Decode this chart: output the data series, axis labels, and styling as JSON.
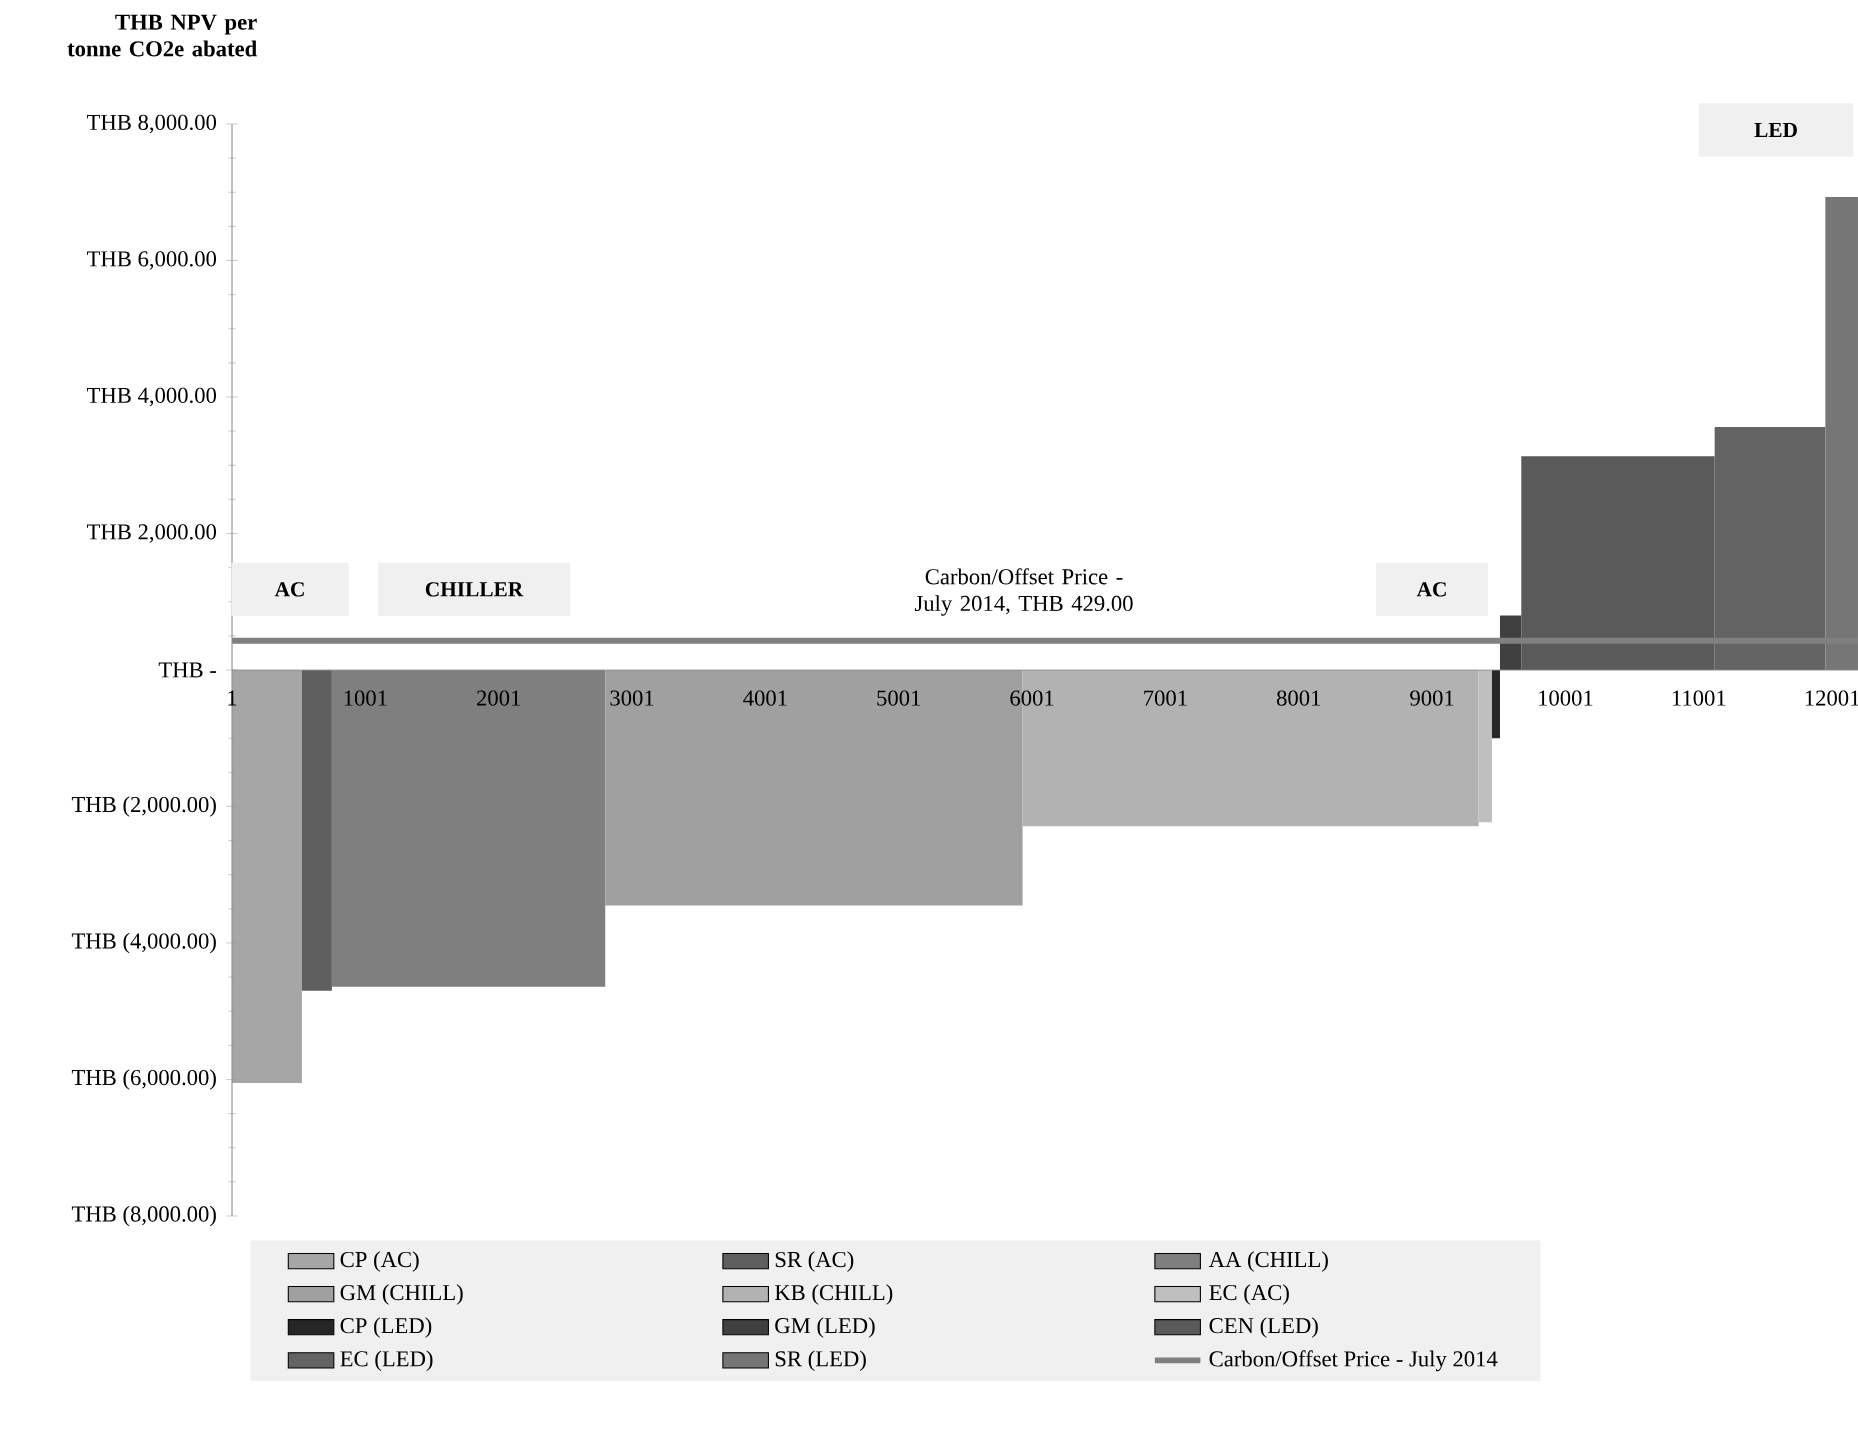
{
  "chart_data": {
    "type": "area",
    "ylabel": "THB NPV per tonne CO2e abated",
    "xlim": [
      1,
      12200
    ],
    "xticks": [
      1,
      1001,
      2001,
      3001,
      4001,
      5001,
      6001,
      7001,
      8001,
      9001,
      10001,
      11001,
      12001
    ],
    "ylim": [
      -8000,
      8000
    ],
    "yticks": [
      {
        "value": 8000,
        "label": "THB 8,000.00"
      },
      {
        "value": 6000,
        "label": "THB 6,000.00"
      },
      {
        "value": 4000,
        "label": "THB 4,000.00"
      },
      {
        "value": 2000,
        "label": "THB 2,000.00"
      },
      {
        "value": 0,
        "label": "THB -"
      },
      {
        "value": -2000,
        "label": "THB (2,000.00)"
      },
      {
        "value": -4000,
        "label": "THB (4,000.00)"
      },
      {
        "value": -6000,
        "label": "THB (6,000.00)"
      },
      {
        "value": -8000,
        "label": "THB (8,000.00)"
      }
    ],
    "series": [
      {
        "name": "CP (AC)",
        "color": "#a6a6a6",
        "x": [
          1,
          525
        ],
        "values": [
          -6050,
          -6050
        ]
      },
      {
        "name": "SR (AC)",
        "color": "#5f5f5f",
        "x": [
          525,
          750
        ],
        "values": [
          -4700,
          -4700
        ]
      },
      {
        "name": "AA (CHILL)",
        "color": "#7f7f7f",
        "x": [
          750,
          2800
        ],
        "values": [
          -4640,
          -4640
        ]
      },
      {
        "name": "GM (CHILL)",
        "color": "#a0a0a0",
        "x": [
          2800,
          5930
        ],
        "values": [
          -3450,
          -3450
        ]
      },
      {
        "name": "KB (CHILL)",
        "color": "#b2b2b2",
        "x": [
          5930,
          9350
        ],
        "values": [
          -2290,
          -2290
        ]
      },
      {
        "name": "EC (AC)",
        "color": "#bfbfbf",
        "x": [
          9350,
          9450
        ],
        "values": [
          -2230,
          -2230
        ]
      },
      {
        "name": "CP (LED)",
        "color": "#262626",
        "x": [
          9450,
          9510
        ],
        "values": [
          -1000,
          -1000
        ]
      },
      {
        "name": "GM (LED)",
        "color": "#404040",
        "x": [
          9510,
          9670
        ],
        "values": [
          800,
          800
        ]
      },
      {
        "name": "CEN (LED)",
        "color": "#5a5a5a",
        "x": [
          9670,
          11120
        ],
        "values": [
          3130,
          3130
        ]
      },
      {
        "name": "EC (LED)",
        "color": "#636363",
        "x": [
          11120,
          11950
        ],
        "values": [
          3560,
          3560
        ]
      },
      {
        "name": "SR (LED)",
        "color": "#767676",
        "x": [
          11950,
          12200
        ],
        "values": [
          6930,
          6930
        ]
      },
      {
        "name": "Carbon/Offset Price - July 2014",
        "type": "line",
        "color": "#808080",
        "x": [
          1,
          12200
        ],
        "values": [
          429,
          429
        ]
      }
    ],
    "annotations": [
      "AC",
      "CHILLER",
      "AC",
      "LED",
      "Carbon/Offset Price - July 2014, THB 429.00"
    ],
    "legend": "bottom",
    "grid": false
  }
}
